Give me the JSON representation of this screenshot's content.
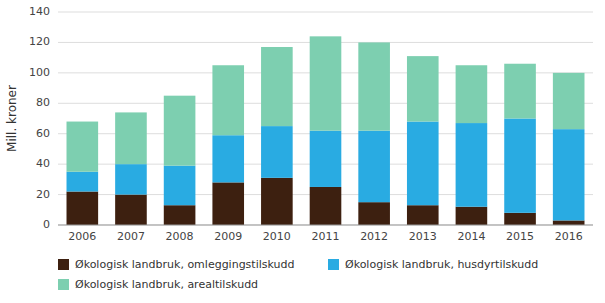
{
  "chart_data": {
    "type": "bar",
    "stacked": true,
    "ylabel": "Mill. kroner",
    "categories": [
      "2006",
      "2007",
      "2008",
      "2009",
      "2010",
      "2011",
      "2012",
      "2013",
      "2014",
      "2015",
      "2016"
    ],
    "series": [
      {
        "name": "Økologisk landbruk, omleggingstilskudd",
        "color": "#3d2010",
        "values": [
          22,
          20,
          13,
          28,
          31,
          25,
          15,
          13,
          12,
          8,
          3
        ]
      },
      {
        "name": "Økologisk landbruk, husdyrtilskudd",
        "color": "#29abe2",
        "values": [
          13,
          20,
          26,
          31,
          34,
          37,
          47,
          55,
          55,
          62,
          60
        ]
      },
      {
        "name": "Økologisk landbruk, arealtilskudd",
        "color": "#7dcfb0",
        "values": [
          33,
          34,
          46,
          46,
          52,
          62,
          58,
          43,
          38,
          36,
          37
        ]
      }
    ],
    "ylim": [
      0,
      140
    ],
    "yticks": [
      0,
      20,
      40,
      60,
      80,
      100,
      120,
      140
    ],
    "grid": true,
    "legend": "bottom"
  }
}
